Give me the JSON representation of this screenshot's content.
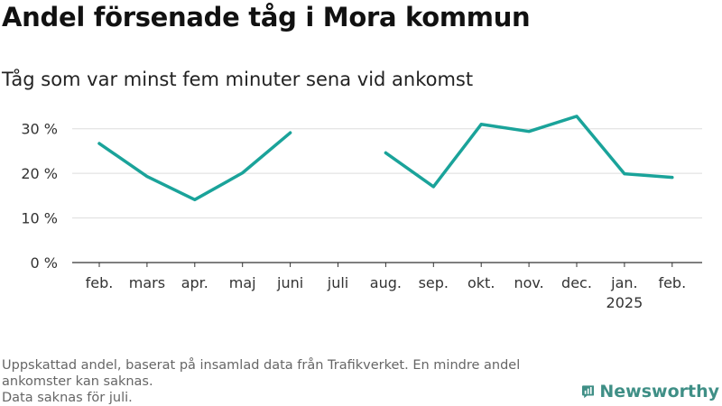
{
  "title": "Andel försenade tåg i Mora kommun",
  "subtitle": "Tåg som var minst fem minuter sena vid ankomst",
  "footnote_lines": [
    "Uppskattad andel, baserat på insamlad data från Trafikverket. En mindre andel ankomster kan saknas.",
    "Data saknas för juli."
  ],
  "logo_text": "Newsworthy",
  "logo_icon": "newsworthy-chart-icon",
  "colors": {
    "line": "#1aa39a",
    "grid": "#dddddd",
    "axis": "#333333",
    "logo": "#3f8f86"
  },
  "chart_data": {
    "type": "line",
    "categories": [
      [
        "feb."
      ],
      [
        "mars"
      ],
      [
        "apr."
      ],
      [
        "maj"
      ],
      [
        "juni"
      ],
      [
        "juli"
      ],
      [
        "aug."
      ],
      [
        "sep."
      ],
      [
        "okt."
      ],
      [
        "nov."
      ],
      [
        "dec."
      ],
      [
        "jan.",
        "2025"
      ],
      [
        "feb."
      ]
    ],
    "series": [
      {
        "values": [
          26.7,
          19.3,
          14.1,
          20.1,
          29.1,
          null,
          24.6,
          17.0,
          31.0,
          29.4,
          32.8,
          19.9,
          19.1
        ]
      }
    ],
    "ylim": [
      0,
      35
    ],
    "yticks": [
      {
        "value": 0,
        "label": "0 %"
      },
      {
        "value": 10,
        "label": "10 %"
      },
      {
        "value": 20,
        "label": "20 %"
      },
      {
        "value": 30,
        "label": "30 %"
      }
    ],
    "grid": true,
    "legend": "none"
  }
}
